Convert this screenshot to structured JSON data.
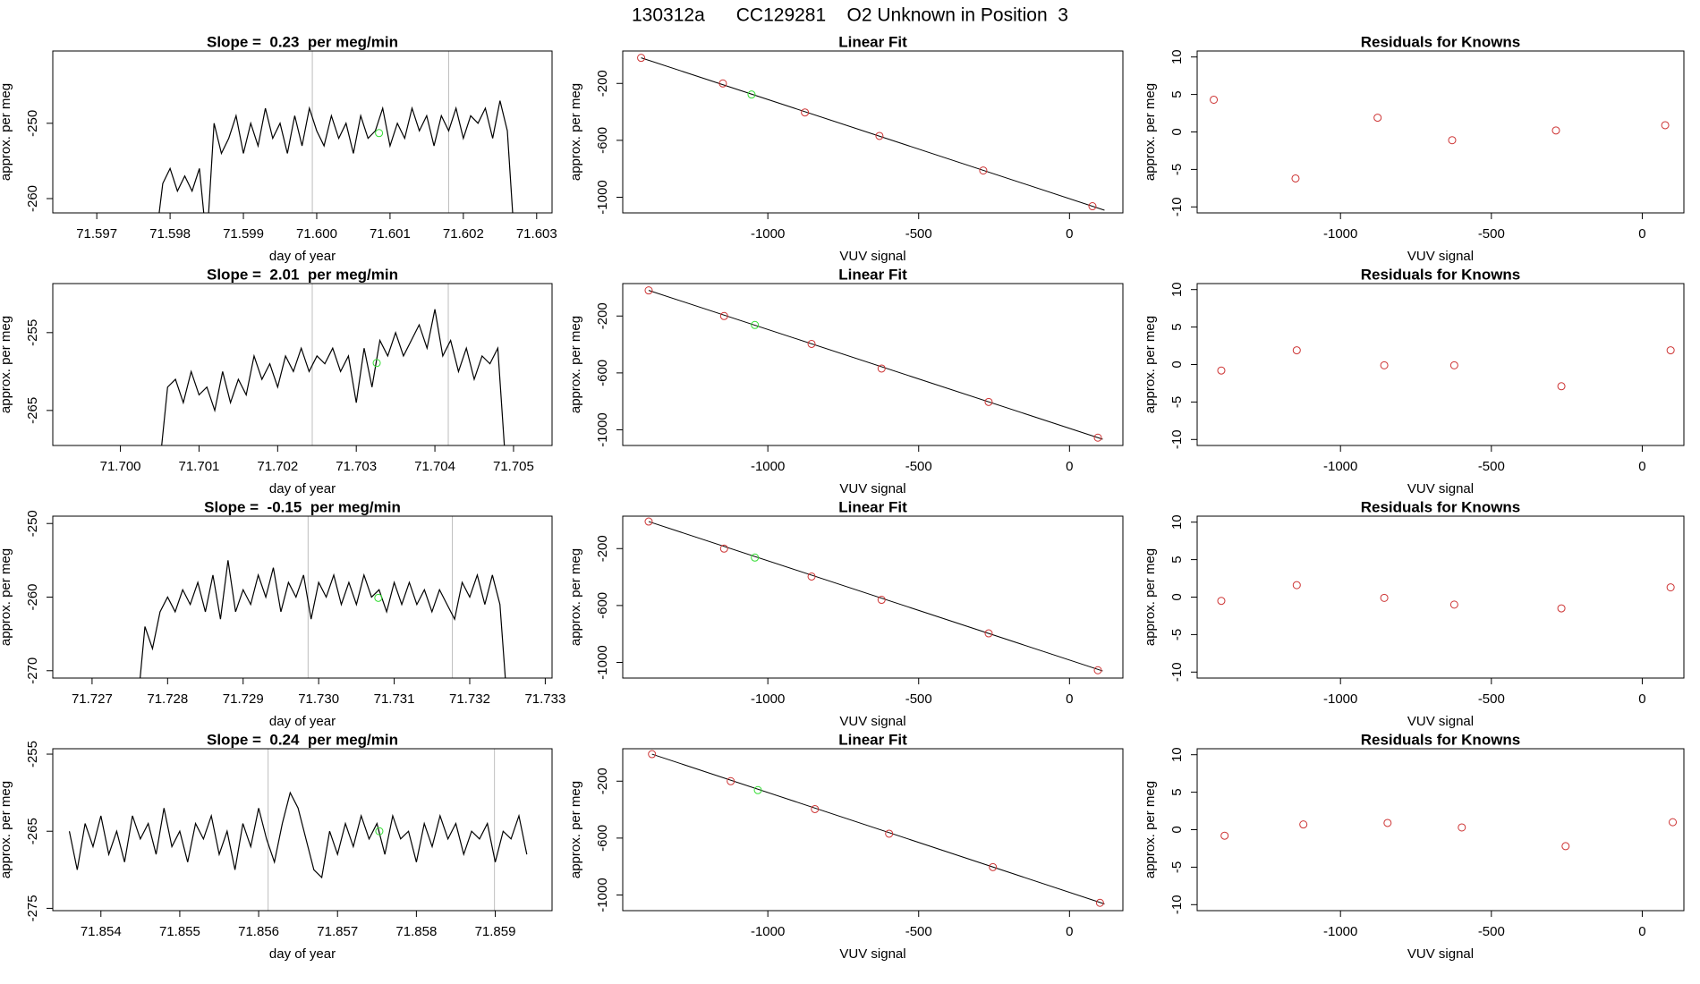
{
  "title": "130312a      CC129281    O2 Unknown in Position  3",
  "chart_data": [
    {
      "type": "line",
      "title": "Slope =  0.23  per meg/min",
      "xlabel": "day of year",
      "ylabel": "approx. per meg",
      "x": [
        71.5978,
        71.5979,
        71.598,
        71.5981,
        71.5982,
        71.5983,
        71.5984,
        71.5985,
        71.5986,
        71.5987,
        71.5988,
        71.5989,
        71.599,
        71.5991,
        71.5992,
        71.5993,
        71.5994,
        71.5995,
        71.5996,
        71.5997,
        71.5998,
        71.5999,
        71.6,
        71.6001,
        71.6002,
        71.6003,
        71.6004,
        71.6005,
        71.6006,
        71.6007,
        71.6008,
        71.6009,
        71.601,
        71.6011,
        71.6012,
        71.6013,
        71.6014,
        71.6015,
        71.6016,
        71.6017,
        71.6018,
        71.6019,
        71.602,
        71.6021,
        71.6022,
        71.6023,
        71.6024,
        71.6025,
        71.6026,
        71.6027
      ],
      "values": [
        -266,
        -258,
        -256,
        -259,
        -257,
        -259,
        -256,
        -266,
        -250,
        -254,
        -252,
        -249,
        -254,
        -250,
        -253,
        -248,
        -252,
        -250,
        -254,
        -249,
        -253,
        -248,
        -251,
        -253,
        -249,
        -252,
        -250,
        -254,
        -249,
        -252,
        -251,
        -248,
        -253,
        -250,
        -252,
        -248,
        -251,
        -249,
        -253,
        -249,
        -251,
        -248,
        -252,
        -249,
        -250,
        -248,
        -252,
        -247,
        -251,
        -266
      ],
      "color": "#000000",
      "vlines": [
        71.59994,
        71.6018
      ],
      "vline_color": "#bebebe",
      "highlight": {
        "x": 71.60085,
        "y": -251.3,
        "color": "#33dd33"
      },
      "xlim": [
        71.5964,
        71.60321
      ],
      "ylim": [
        -261.9,
        -240.4
      ],
      "xticks": [
        71.597,
        71.598,
        71.599,
        {
          "value": 71.6,
          "label": "71.600"
        },
        71.601,
        71.602,
        71.603
      ],
      "yticks": [
        -260,
        -250
      ]
    },
    {
      "type": "scatter",
      "title": "Linear Fit",
      "xlabel": "VUV signal",
      "ylabel": "approx. per meg",
      "points": {
        "x": [
          -1420,
          -1149,
          -877,
          -630,
          -286,
          76
        ],
        "values": [
          -20,
          -200,
          -404,
          -569,
          -812,
          -1063
        ],
        "color": "#cd3333"
      },
      "unknown": {
        "x": -1054,
        "y": -278,
        "color": "#33dd33"
      },
      "fit_line": {
        "x": [
          -1420,
          116
        ],
        "values": [
          -20,
          -1091
        ],
        "color": "#000000"
      },
      "xlim": [
        -1481,
        177
      ],
      "ylim": [
        -1110,
        28
      ],
      "xticks": [
        -1000,
        -500,
        0
      ],
      "yticks": [
        -200,
        -600,
        -1000
      ]
    },
    {
      "type": "scatter",
      "title": "Residuals for Knowns",
      "xlabel": "VUV signal",
      "ylabel": "approx. per meg",
      "points": {
        "x": [
          -1420,
          -1149,
          -877,
          -630,
          -286,
          76
        ],
        "values": [
          4.3,
          -6.2,
          1.9,
          -1.1,
          0.2,
          0.9
        ],
        "color": "#cd3333"
      },
      "xlim": [
        -1475,
        138
      ],
      "ylim": [
        -10.8,
        10.8
      ],
      "xticks": [
        -1000,
        -500,
        0
      ],
      "yticks": [
        -10,
        -5,
        0,
        5,
        10
      ]
    },
    {
      "type": "line",
      "title": "Slope =  2.01  per meg/min",
      "xlabel": "day of year",
      "ylabel": "approx. per meg",
      "x": [
        71.7005,
        71.7006,
        71.7007,
        71.7008,
        71.7009,
        71.701,
        71.7011,
        71.7012,
        71.7013,
        71.7014,
        71.7015,
        71.7016,
        71.7017,
        71.7018,
        71.7019,
        71.702,
        71.7021,
        71.7022,
        71.7023,
        71.7024,
        71.7025,
        71.7026,
        71.7027,
        71.7028,
        71.7029,
        71.703,
        71.7031,
        71.7032,
        71.7033,
        71.7034,
        71.7035,
        71.7036,
        71.7037,
        71.7038,
        71.7039,
        71.704,
        71.7041,
        71.7042,
        71.7043,
        71.7044,
        71.7045,
        71.7046,
        71.7047,
        71.7048,
        71.7049
      ],
      "values": [
        -272,
        -262,
        -261,
        -264,
        -260,
        -263,
        -262,
        -265,
        -260,
        -264,
        -261,
        -263,
        -258,
        -261,
        -259,
        -262,
        -258,
        -260,
        -257,
        -260,
        -258,
        -259,
        -257,
        -260,
        -258,
        -264,
        -257,
        -262,
        -256,
        -258,
        -255,
        -258,
        -256,
        -254,
        -257,
        -252,
        -258,
        -256,
        -260,
        -257,
        -261,
        -258,
        -259,
        -257,
        -272
      ],
      "color": "#000000",
      "vlines": [
        71.70244,
        71.70417
      ],
      "vline_color": "#bebebe",
      "highlight": {
        "x": 71.70326,
        "y": -258.9,
        "color": "#33dd33"
      },
      "xlim": [
        71.69914,
        71.70549
      ],
      "ylim": [
        -269.5,
        -248.7
      ],
      "xticks": [
        {
          "value": 71.7,
          "label": "71.700"
        },
        71.701,
        71.702,
        71.703,
        71.704,
        71.705
      ],
      "yticks": [
        -265,
        -255
      ]
    },
    {
      "type": "scatter",
      "title": "Linear Fit",
      "xlabel": "VUV signal",
      "ylabel": "approx. per meg",
      "points": {
        "x": [
          -1395,
          -1145,
          -855,
          -623,
          -268,
          94
        ],
        "values": [
          -20,
          -200,
          -396,
          -569,
          -804,
          -1055
        ],
        "color": "#cd3333"
      },
      "unknown": {
        "x": -1043,
        "y": -263,
        "color": "#33dd33"
      },
      "fit_line": {
        "x": [
          -1395,
          110
        ],
        "values": [
          -20,
          -1066
        ],
        "color": "#000000"
      },
      "xlim": [
        -1481,
        177
      ],
      "ylim": [
        -1110,
        28
      ],
      "xticks": [
        -1000,
        -500,
        0
      ],
      "yticks": [
        -200,
        -600,
        -1000
      ]
    },
    {
      "type": "scatter",
      "title": "Residuals for Knowns",
      "xlabel": "VUV signal",
      "ylabel": "approx. per meg",
      "points": {
        "x": [
          -1395,
          -1145,
          -855,
          -623,
          -268,
          94
        ],
        "values": [
          -0.8,
          1.9,
          -0.1,
          -0.1,
          -2.9,
          1.9
        ],
        "color": "#cd3333"
      },
      "xlim": [
        -1475,
        138
      ],
      "ylim": [
        -10.8,
        10.8
      ],
      "xticks": [
        -1000,
        -500,
        0
      ],
      "yticks": [
        -10,
        -5,
        0,
        5,
        10
      ]
    },
    {
      "type": "line",
      "title": "Slope =  -0.15  per meg/min",
      "xlabel": "day of year",
      "ylabel": "approx. per meg",
      "x": [
        71.7276,
        71.7277,
        71.7278,
        71.7279,
        71.728,
        71.7281,
        71.7282,
        71.7283,
        71.7284,
        71.7285,
        71.7286,
        71.7287,
        71.7288,
        71.7289,
        71.729,
        71.7291,
        71.7292,
        71.7293,
        71.7294,
        71.7295,
        71.7296,
        71.7297,
        71.7298,
        71.7299,
        71.73,
        71.7301,
        71.7302,
        71.7303,
        71.7304,
        71.7305,
        71.7306,
        71.7307,
        71.7308,
        71.7309,
        71.731,
        71.7311,
        71.7312,
        71.7313,
        71.7314,
        71.7315,
        71.7316,
        71.7317,
        71.7318,
        71.7319,
        71.732,
        71.7321,
        71.7322,
        71.7323,
        71.7324,
        71.7325
      ],
      "values": [
        -275,
        -264,
        -267,
        -262,
        -260,
        -262,
        -259,
        -261,
        -258,
        -262,
        -257,
        -263,
        -255,
        -262,
        -259,
        -261,
        -257,
        -260,
        -256,
        -262,
        -258,
        -260,
        -257,
        -263,
        -258,
        -260,
        -257,
        -261,
        -258,
        -261,
        -257,
        -260,
        -259,
        -262,
        -258,
        -261,
        -258,
        -261,
        -259,
        -262,
        -259,
        -261,
        -263,
        -258,
        -260,
        -257,
        -261,
        -257,
        -261,
        -275
      ],
      "color": "#000000",
      "vlines": [
        71.72986,
        71.73177
      ],
      "vline_color": "#bebebe",
      "highlight": {
        "x": 71.73079,
        "y": -260.1,
        "color": "#33dd33"
      },
      "xlim": [
        71.72648,
        71.73309
      ],
      "ylim": [
        -271.0,
        -249.0
      ],
      "xticks": [
        71.727,
        71.728,
        71.729,
        {
          "value": 71.73,
          "label": "71.730"
        },
        71.731,
        71.732,
        71.733
      ],
      "yticks": [
        -270,
        -260,
        -250
      ]
    },
    {
      "type": "scatter",
      "title": "Linear Fit",
      "xlabel": "VUV signal",
      "ylabel": "approx. per meg",
      "points": {
        "x": [
          -1395,
          -1145,
          -855,
          -623,
          -268,
          94
        ],
        "values": [
          -10,
          -200,
          -396,
          -560,
          -796,
          -1055
        ],
        "color": "#cd3333"
      },
      "unknown": {
        "x": -1043,
        "y": -263,
        "color": "#33dd33"
      },
      "fit_line": {
        "x": [
          -1395,
          110
        ],
        "values": [
          -10,
          -1060
        ],
        "color": "#000000"
      },
      "xlim": [
        -1481,
        177
      ],
      "ylim": [
        -1110,
        28
      ],
      "xticks": [
        -1000,
        -500,
        0
      ],
      "yticks": [
        -200,
        -600,
        -1000
      ]
    },
    {
      "type": "scatter",
      "title": "Residuals for Knowns",
      "xlabel": "VUV signal",
      "ylabel": "approx. per meg",
      "points": {
        "x": [
          -1395,
          -1145,
          -855,
          -623,
          -268,
          94
        ],
        "values": [
          -0.5,
          1.6,
          -0.1,
          -1.0,
          -1.5,
          1.3
        ],
        "color": "#cd3333"
      },
      "xlim": [
        -1475,
        138
      ],
      "ylim": [
        -10.8,
        10.8
      ],
      "xticks": [
        -1000,
        -500,
        0
      ],
      "yticks": [
        -10,
        -5,
        0,
        5,
        10
      ]
    },
    {
      "type": "line",
      "title": "Slope =  0.24  per meg/min",
      "xlabel": "day of year",
      "ylabel": "approx. per meg",
      "x": [
        71.8536,
        71.8537,
        71.8538,
        71.8539,
        71.854,
        71.8541,
        71.8542,
        71.8543,
        71.8544,
        71.8545,
        71.8546,
        71.8547,
        71.8548,
        71.8549,
        71.855,
        71.8551,
        71.8552,
        71.8553,
        71.8554,
        71.8555,
        71.8556,
        71.8557,
        71.8558,
        71.8559,
        71.856,
        71.8561,
        71.8562,
        71.8563,
        71.8564,
        71.8565,
        71.8566,
        71.8567,
        71.8568,
        71.8569,
        71.857,
        71.8571,
        71.8572,
        71.8573,
        71.8574,
        71.8575,
        71.8576,
        71.8577,
        71.8578,
        71.8579,
        71.858,
        71.8581,
        71.8582,
        71.8583,
        71.8584,
        71.8585,
        71.8586,
        71.8587,
        71.8588,
        71.8589,
        71.859,
        71.8591,
        71.8592,
        71.8593,
        71.8594
      ],
      "values": [
        -265,
        -270,
        -264,
        -267,
        -263,
        -268,
        -265,
        -269,
        -263,
        -266,
        -264,
        -268,
        -262,
        -267,
        -265,
        -269,
        -264,
        -266,
        -263,
        -268,
        -265,
        -270,
        -264,
        -267,
        -262,
        -266,
        -269,
        -264,
        -260,
        -262,
        -266,
        -270,
        -271,
        -265,
        -268,
        -264,
        -267,
        -263,
        -266,
        -264,
        -268,
        -263,
        -266,
        -265,
        -269,
        -264,
        -267,
        -263,
        -266,
        -264,
        -268,
        -265,
        -266,
        -264,
        -269,
        -265,
        -266,
        -263,
        -268
      ],
      "color": "#000000",
      "vlines": [
        71.85612,
        71.85899
      ],
      "vline_color": "#bebebe",
      "highlight": {
        "x": 71.85753,
        "y": -265.0,
        "color": "#33dd33"
      },
      "xlim": [
        71.85339,
        71.85972
      ],
      "ylim": [
        -275.3,
        -254.3
      ],
      "xticks": [
        71.854,
        71.855,
        71.856,
        71.857,
        71.858,
        71.859
      ],
      "yticks": [
        -275,
        -265,
        -255
      ]
    },
    {
      "type": "scatter",
      "title": "Linear Fit",
      "xlabel": "VUV signal",
      "ylabel": "approx. per meg",
      "points": {
        "x": [
          -1384,
          -1123,
          -844,
          -598,
          -254,
          101
        ],
        "values": [
          -10,
          -200,
          -396,
          -569,
          -804,
          -1055
        ],
        "color": "#cd3333"
      },
      "unknown": {
        "x": -1033,
        "y": -263,
        "color": "#33dd33"
      },
      "fit_line": {
        "x": [
          -1384,
          116
        ],
        "values": [
          -10,
          -1063
        ],
        "color": "#000000"
      },
      "xlim": [
        -1481,
        177
      ],
      "ylim": [
        -1110,
        28
      ],
      "xticks": [
        -1000,
        -500,
        0
      ],
      "yticks": [
        -200,
        -600,
        -1000
      ]
    },
    {
      "type": "scatter",
      "title": "Residuals for Knowns",
      "xlabel": "VUV signal",
      "ylabel": "approx. per meg",
      "points": {
        "x": [
          -1384,
          -1123,
          -844,
          -598,
          -254,
          101
        ],
        "values": [
          -0.8,
          0.7,
          0.9,
          0.3,
          -2.2,
          1.0
        ],
        "color": "#cd3333"
      },
      "xlim": [
        -1475,
        138
      ],
      "ylim": [
        -10.8,
        10.8
      ],
      "xticks": [
        -1000,
        -500,
        0
      ],
      "yticks": [
        -10,
        -5,
        0,
        5,
        10
      ]
    }
  ]
}
